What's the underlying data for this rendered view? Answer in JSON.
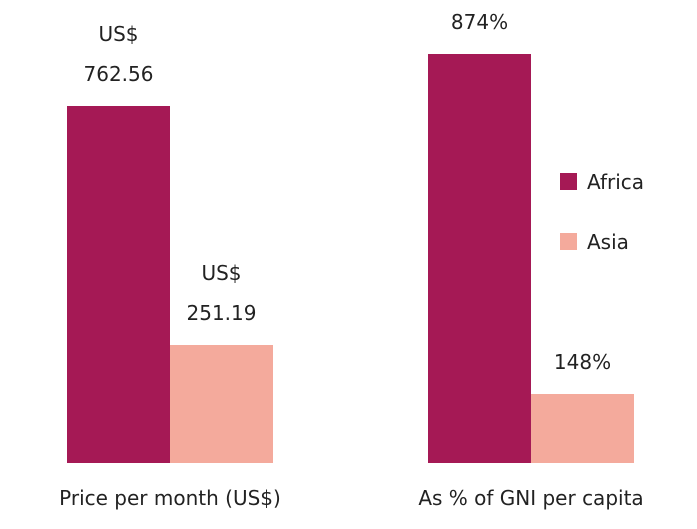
{
  "chart_data": [
    {
      "type": "bar",
      "categories": [
        "Price per month (US$)"
      ],
      "series": [
        {
          "color": "#a51955",
          "values": [
            762.56
          ],
          "value_labels": [
            "US$ 762.56"
          ]
        },
        {
          "color": "#f4aa9c",
          "values": [
            251.19
          ],
          "value_labels": [
            "US$ 251.19"
          ]
        }
      ]
    },
    {
      "type": "bar",
      "categories": [
        "As % of GNI per capita"
      ],
      "series": [
        {
          "name": "Africa",
          "color": "#a51955",
          "values": [
            874
          ],
          "value_labels": [
            "874%"
          ]
        },
        {
          "name": "Asia",
          "color": "#f4aa9c",
          "values": [
            148
          ],
          "value_labels": [
            "148%"
          ]
        }
      ],
      "legend": "right"
    }
  ]
}
